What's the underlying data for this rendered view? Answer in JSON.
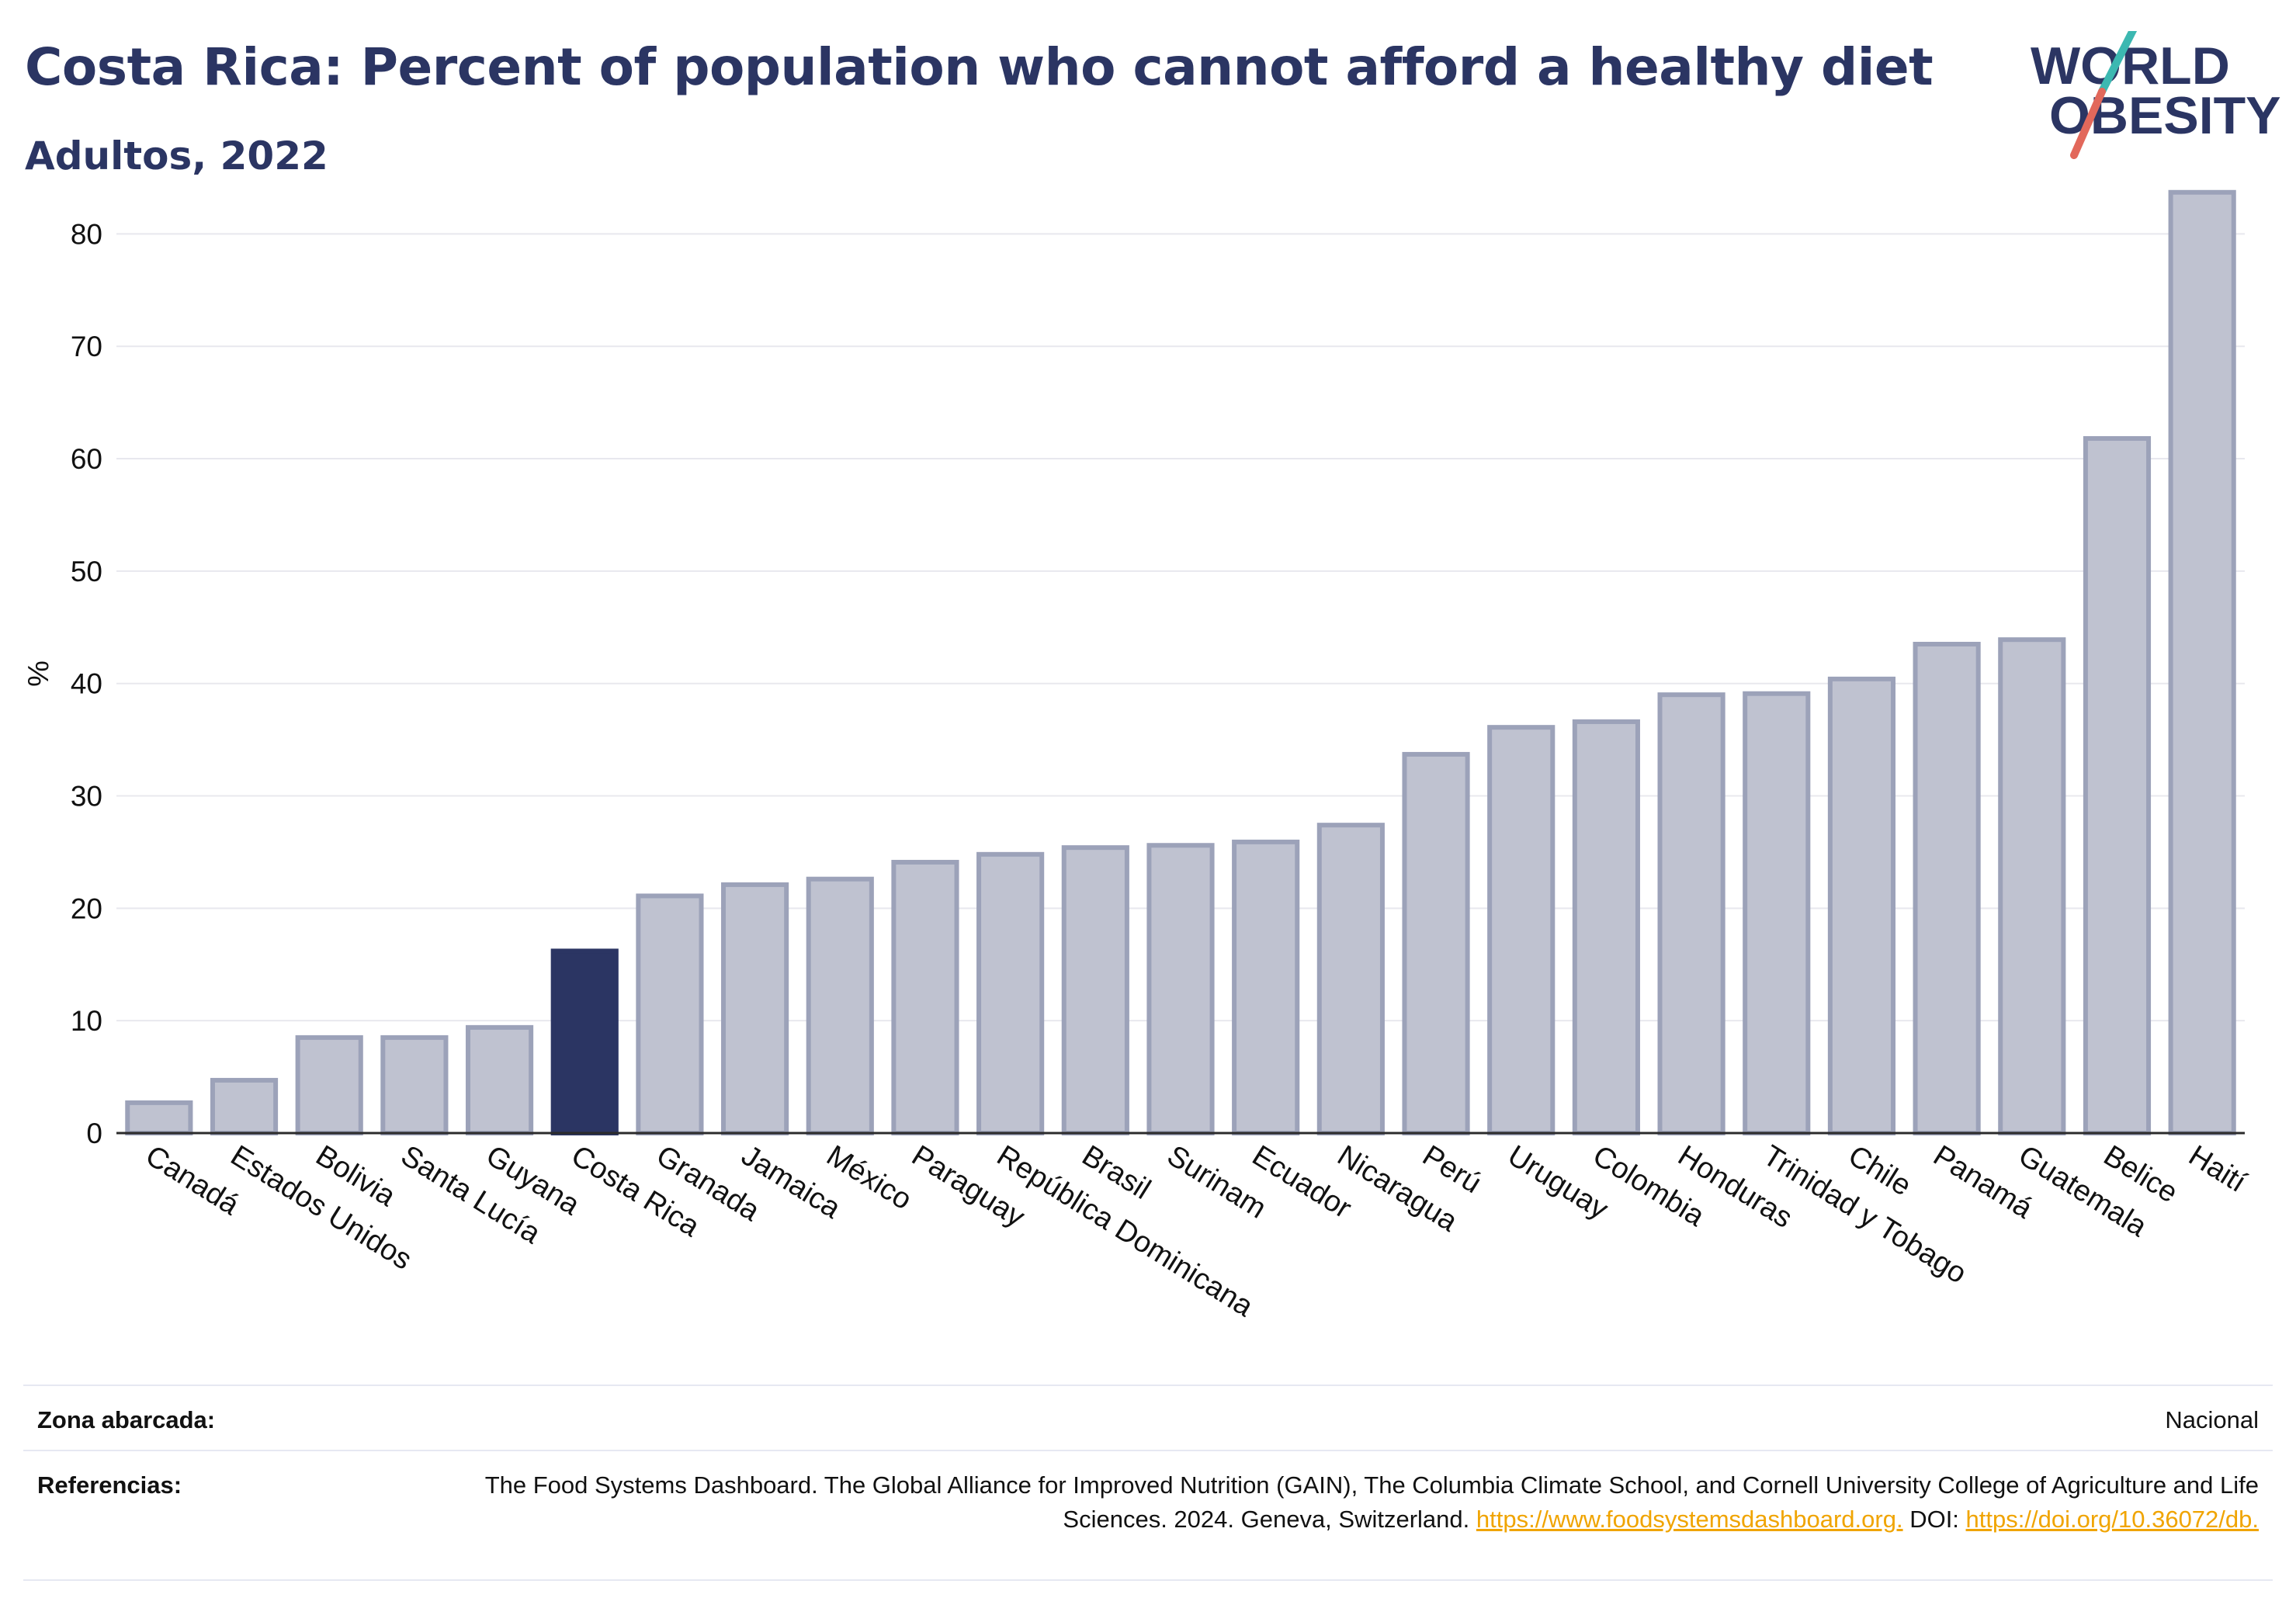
{
  "header": {
    "title": "Costa Rica: Percent of population who cannot afford a healthy diet",
    "subtitle": "Adultos, 2022"
  },
  "logo": {
    "line1": "WORLD",
    "line2": "OBESITY"
  },
  "colors": {
    "highlight_bar": "#2b3563",
    "default_bar_fill": "#bfc2d0",
    "default_bar_stroke": "#9ca2b9",
    "text": "#2b3563",
    "grid": "#e8e8ee",
    "link": "#f0a400",
    "logo_slash_teal": "#3cb8b1",
    "logo_slash_red": "#e2685b"
  },
  "chart_data": {
    "type": "bar",
    "title": "Costa Rica: Percent of population who cannot afford a healthy diet",
    "subtitle": "Adultos, 2022",
    "xlabel": "",
    "ylabel": "%",
    "ylim": [
      0,
      87
    ],
    "yticks": [
      0,
      10,
      20,
      30,
      40,
      50,
      60,
      70,
      80
    ],
    "grid": true,
    "highlight": "Costa Rica",
    "categories": [
      "Canadá",
      "Estados Unidos",
      "Bolivia",
      "Santa Lucía",
      "Guyana",
      "Costa Rica",
      "Granada",
      "Jamaica",
      "México",
      "Paraguay",
      "República Dominicana",
      "Brasil",
      "Surinam",
      "Ecuador",
      "Nicaragua",
      "Perú",
      "Uruguay",
      "Colombia",
      "Honduras",
      "Trinidad y Tobago",
      "Chile",
      "Panamá",
      "Guatemala",
      "Belice",
      "Haití"
    ],
    "values": [
      2.7,
      4.7,
      8.5,
      8.5,
      9.4,
      16.2,
      21.1,
      22.1,
      22.6,
      24.1,
      24.8,
      25.4,
      25.6,
      25.9,
      27.4,
      33.7,
      36.1,
      36.6,
      39.0,
      39.1,
      40.4,
      43.5,
      43.9,
      61.8,
      83.7
    ]
  },
  "footer": {
    "zone_label": "Zona abarcada:",
    "zone_value": "Nacional",
    "refs_label": "Referencias:",
    "refs_text": "The Food Systems Dashboard. The Global Alliance for Improved Nutrition (GAIN), The Columbia Climate School, and Cornell University College of Agriculture and Life Sciences. 2024. Geneva, Switzerland.",
    "refs_link1": "https://www.foodsystemsdashboard.org.",
    "refs_doi_label": "DOI:",
    "refs_link2": "https://doi.org/10.36072/db."
  }
}
